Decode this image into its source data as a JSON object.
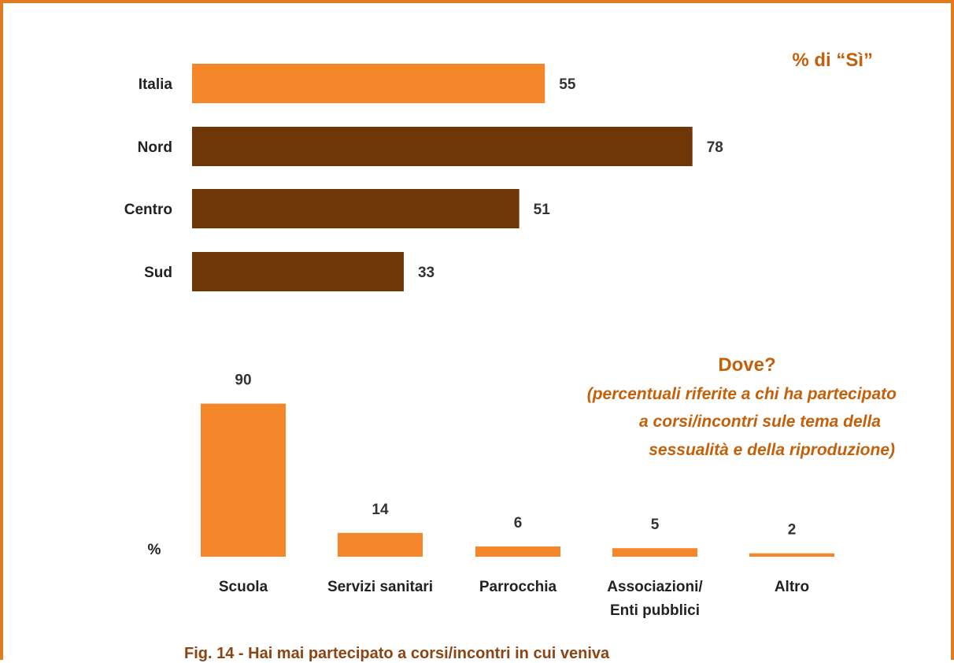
{
  "colors": {
    "frame": "#E07B1F",
    "orange": "#F5862A",
    "brown": "#6F3607",
    "annotation": "#C45F0A",
    "caption": "#8B4513"
  },
  "chart_data": [
    {
      "type": "bar",
      "orientation": "horizontal",
      "categories": [
        "Italia",
        "Nord",
        "Centro",
        "Sud"
      ],
      "values": [
        55,
        78,
        51,
        33
      ],
      "bar_colors": [
        "#F5862A",
        "#6F3607",
        "#6F3607",
        "#6F3607"
      ],
      "annotation": "% di “Sì”",
      "xlim": [
        0,
        100
      ],
      "grid": false
    },
    {
      "type": "bar",
      "orientation": "vertical",
      "categories": [
        "Scuola",
        "Servizi sanitari",
        "Parrocchia",
        "Associazioni/\nEnti pubblici",
        "Altro"
      ],
      "values": [
        90,
        14,
        6,
        5,
        2
      ],
      "bar_color": "#F5862A",
      "ylabel": "%",
      "title": "Dove?",
      "subtitle_lines": [
        "(percentuali riferite a chi ha partecipato",
        "a corsi/incontri sule tema della",
        "sessualità e della riproduzione)"
      ],
      "ylim": [
        0,
        100
      ],
      "grid": false
    }
  ],
  "caption": "Fig. 14 - Hai mai partecipato a corsi/incontri in cui veniva"
}
